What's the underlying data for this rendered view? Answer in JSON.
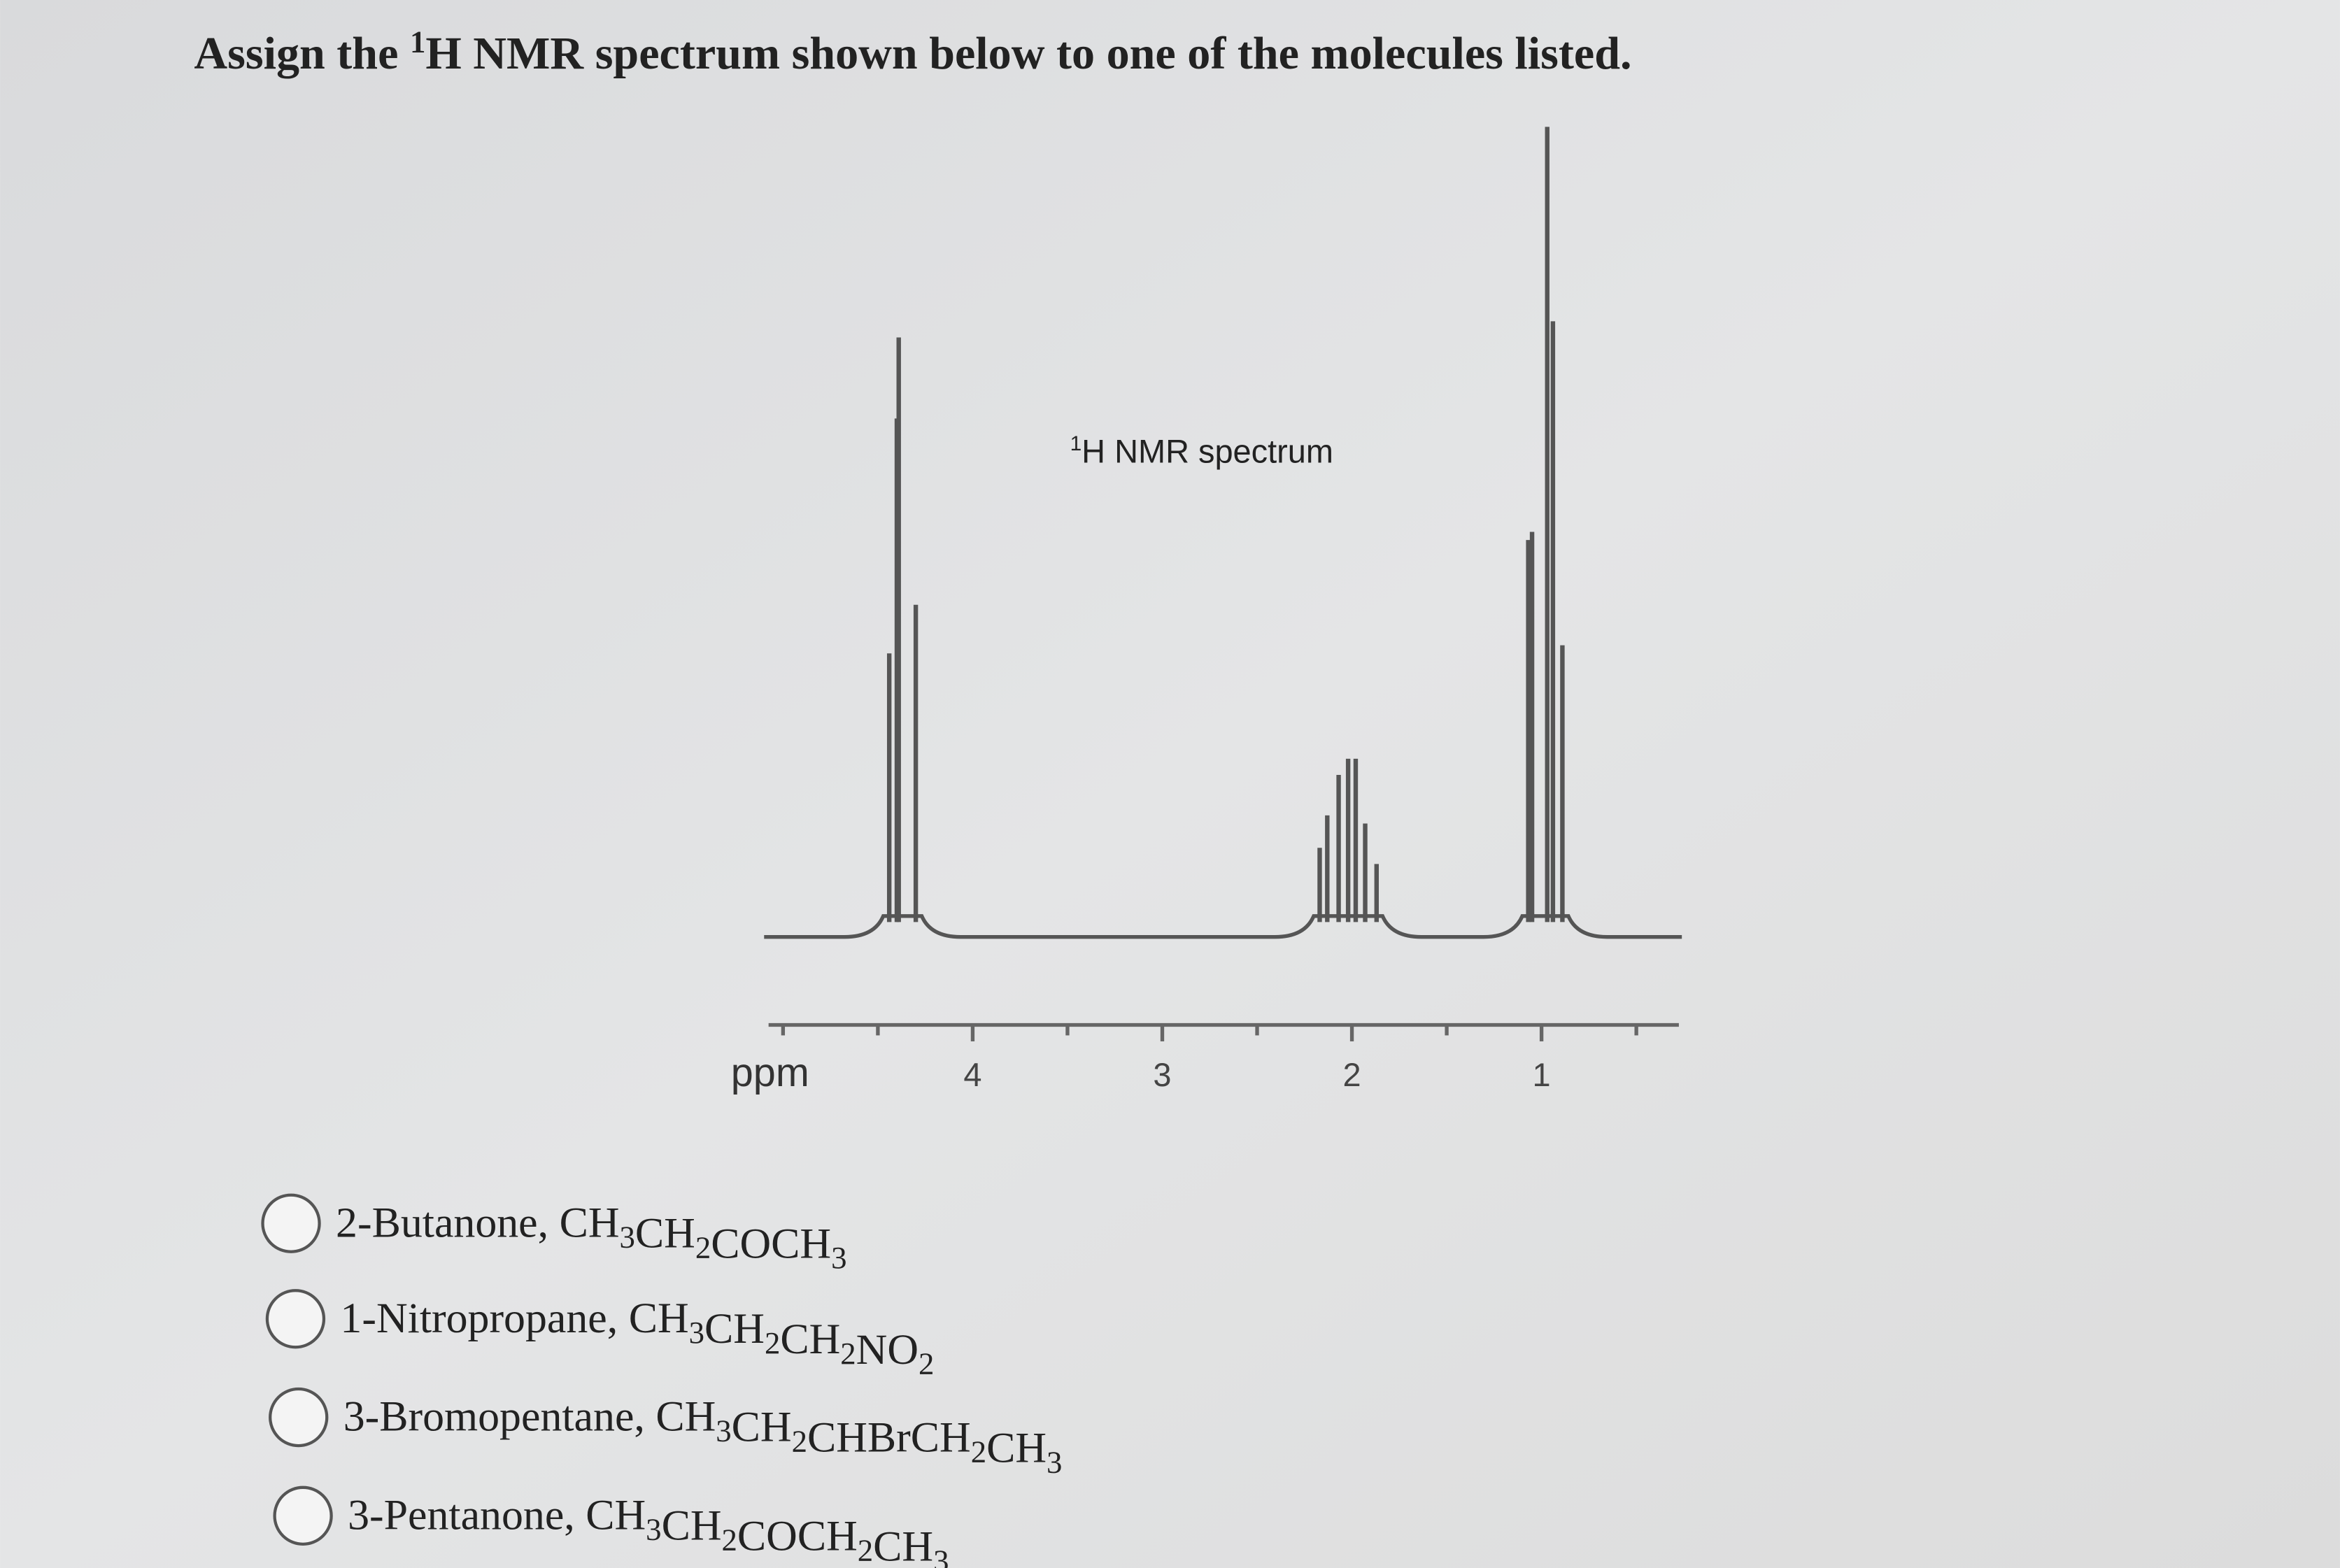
{
  "question": {
    "prefix": "Assign the ",
    "superscript": "1",
    "text": "H NMR spectrum shown below to one of the molecules listed."
  },
  "chart_data": {
    "type": "spectrum",
    "title": {
      "superscript": "1",
      "text": "H NMR spectrum"
    },
    "xlabel": "ppm",
    "xlim": [
      5.1,
      0.26
    ],
    "xticks": [
      4,
      3,
      2,
      1
    ],
    "minor_xticks": [
      5,
      4.5,
      3.5,
      2.5,
      1.5,
      0.5
    ],
    "ylim": [
      0,
      100
    ],
    "color": "#555555",
    "peaks": {
      "x": [
        4.44,
        4.4,
        4.39,
        4.3,
        2.17,
        2.13,
        2.07,
        2.02,
        1.98,
        1.93,
        1.87,
        1.07,
        1.05,
        0.97,
        0.94,
        0.89
      ],
      "values": [
        35,
        64,
        74,
        41,
        11,
        15,
        20,
        22,
        22,
        14,
        9,
        49,
        50,
        100,
        76,
        36
      ]
    }
  },
  "options": [
    {
      "name": "2-Butanone, ",
      "formula": "CH3CH2COCH3"
    },
    {
      "name": "1-Nitropropane, ",
      "formula": "CH3CH2CH2NO2"
    },
    {
      "name": "3-Bromopentane, ",
      "formula": "CH3CH2CHBrCH2CH3"
    },
    {
      "name": "3-Pentanone, ",
      "formula": "CH3CH2COCH2CH3"
    }
  ]
}
